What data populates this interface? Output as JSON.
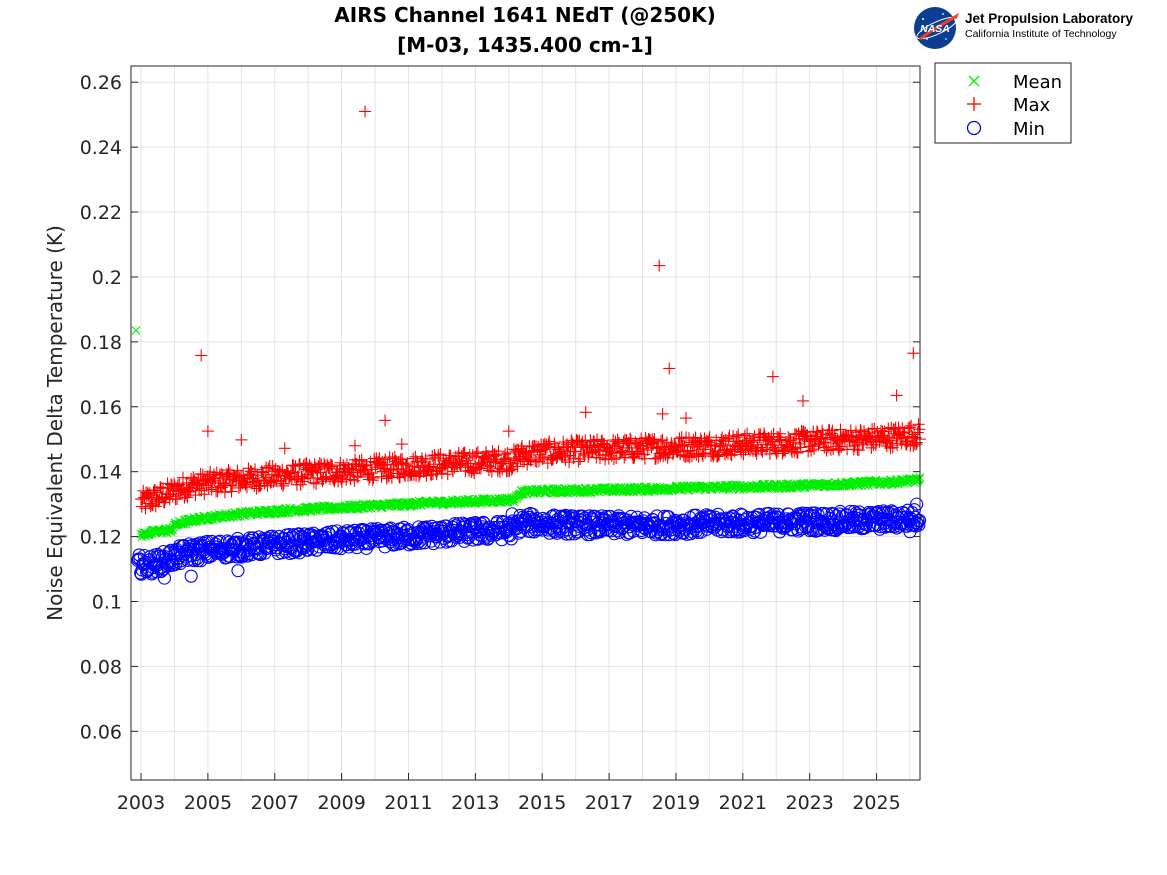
{
  "header": {
    "logo_name": "Jet Propulsion Laboratory",
    "logo_subtitle": "California Institute of Technology",
    "logo_mark_text": "NASA"
  },
  "colors": {
    "mean": "#00ee00",
    "max": "#ff0000",
    "min": "#0000ff",
    "grid": "#e3e3e3",
    "axis": "#262626"
  },
  "chart_data": {
    "type": "scatter",
    "title": [
      "AIRS Channel 1641 NEdT (@250K)",
      "[M-03, 1435.400 cm-1]"
    ],
    "ylabel": "Noise Equivalent Delta Temperature (K)",
    "xlabel": "",
    "xlim": [
      2002.7,
      2026.3
    ],
    "ylim": [
      0.045,
      0.265
    ],
    "yticks": [
      0.06,
      0.08,
      0.1,
      0.12,
      0.14,
      0.16,
      0.18,
      0.2,
      0.22,
      0.24,
      0.26
    ],
    "ytick_labels": [
      "0.06",
      "0.08",
      "0.1",
      "0.12",
      "0.14",
      "0.16",
      "0.18",
      "0.2",
      "0.22",
      "0.24",
      "0.26"
    ],
    "xticks": [
      2003,
      2005,
      2007,
      2009,
      2011,
      2013,
      2015,
      2017,
      2019,
      2021,
      2023,
      2025
    ],
    "xtick_labels": [
      "2003",
      "2005",
      "2007",
      "2009",
      "2011",
      "2013",
      "2015",
      "2017",
      "2019",
      "2021",
      "2023",
      "2025"
    ],
    "xgrid_minor": [
      2002.7,
      2003,
      2004,
      2005,
      2006,
      2007,
      2008,
      2009,
      2010,
      2011,
      2012,
      2013,
      2014,
      2015,
      2016,
      2017,
      2018,
      2019,
      2020,
      2021,
      2022,
      2023,
      2024,
      2025,
      2026
    ],
    "grid": true,
    "legend_position": "outside-top-right",
    "series": [
      {
        "name": "Mean",
        "marker": "x",
        "color": "#00ee00",
        "x": [
          2003.0,
          2003.3,
          2003.6,
          2003.9,
          2004.0,
          2004.3,
          2004.6,
          2005.0,
          2005.5,
          2006.0,
          2006.5,
          2007.0,
          2007.5,
          2008.0,
          2008.5,
          2009.0,
          2009.5,
          2010.0,
          2010.5,
          2011.0,
          2011.5,
          2012.0,
          2012.5,
          2013.0,
          2013.5,
          2014.0,
          2014.2,
          2014.3,
          2014.6,
          2015.0,
          2015.5,
          2016.0,
          2016.5,
          2017.0,
          2017.5,
          2018.0,
          2018.5,
          2019.0,
          2019.5,
          2020.0,
          2020.5,
          2021.0,
          2021.5,
          2022.0,
          2022.5,
          2023.0,
          2023.5,
          2024.0,
          2024.5,
          2025.0,
          2025.5,
          2026.0,
          2026.3
        ],
        "y": [
          0.1205,
          0.1212,
          0.1217,
          0.122,
          0.1235,
          0.1245,
          0.1252,
          0.1258,
          0.1264,
          0.127,
          0.1274,
          0.1278,
          0.1281,
          0.1284,
          0.1287,
          0.129,
          0.1292,
          0.1295,
          0.1297,
          0.13,
          0.1303,
          0.1305,
          0.1307,
          0.1309,
          0.1311,
          0.1313,
          0.1315,
          0.1335,
          0.1338,
          0.134,
          0.1341,
          0.1342,
          0.1343,
          0.1344,
          0.1345,
          0.1346,
          0.1347,
          0.1349,
          0.135,
          0.1351,
          0.1352,
          0.1353,
          0.1354,
          0.1355,
          0.1356,
          0.1358,
          0.136,
          0.1362,
          0.1364,
          0.1366,
          0.1368,
          0.1372,
          0.1375
        ],
        "outliers": [
          [
            2002.85,
            0.1835
          ]
        ]
      },
      {
        "name": "Max",
        "marker": "+",
        "color": "#ff0000",
        "x": [
          2003.0,
          2003.3,
          2003.6,
          2003.9,
          2004.2,
          2004.6,
          2005.0,
          2005.5,
          2006.0,
          2006.5,
          2007.0,
          2007.5,
          2008.0,
          2008.5,
          2009.0,
          2009.5,
          2010.0,
          2010.5,
          2011.0,
          2011.5,
          2012.0,
          2012.5,
          2013.0,
          2013.5,
          2014.0,
          2014.2,
          2014.3,
          2014.6,
          2015.0,
          2015.5,
          2016.0,
          2016.5,
          2017.0,
          2017.5,
          2018.0,
          2018.5,
          2019.0,
          2019.5,
          2020.0,
          2020.5,
          2021.0,
          2021.5,
          2022.0,
          2022.5,
          2023.0,
          2023.5,
          2024.0,
          2024.5,
          2025.0,
          2025.5,
          2026.0,
          2026.3
        ],
        "y": [
          0.1305,
          0.1315,
          0.1325,
          0.1335,
          0.135,
          0.136,
          0.1365,
          0.137,
          0.1376,
          0.1382,
          0.1386,
          0.139,
          0.1393,
          0.1397,
          0.14,
          0.1404,
          0.1408,
          0.1412,
          0.1416,
          0.142,
          0.1423,
          0.1426,
          0.1429,
          0.1432,
          0.1435,
          0.1437,
          0.145,
          0.1455,
          0.1458,
          0.1461,
          0.1464,
          0.1466,
          0.1468,
          0.147,
          0.1472,
          0.1474,
          0.1476,
          0.1478,
          0.148,
          0.1482,
          0.1484,
          0.1486,
          0.1488,
          0.149,
          0.1493,
          0.1496,
          0.1498,
          0.15,
          0.1503,
          0.1507,
          0.1512,
          0.1515
        ],
        "outliers": [
          [
            2004.8,
            0.1758
          ],
          [
            2005.0,
            0.1525
          ],
          [
            2006.0,
            0.1498
          ],
          [
            2007.3,
            0.1472
          ],
          [
            2009.4,
            0.148
          ],
          [
            2009.7,
            0.251
          ],
          [
            2010.3,
            0.1558
          ],
          [
            2010.8,
            0.1485
          ],
          [
            2014.0,
            0.1525
          ],
          [
            2016.3,
            0.1583
          ],
          [
            2018.5,
            0.2035
          ],
          [
            2018.6,
            0.1578
          ],
          [
            2018.8,
            0.1718
          ],
          [
            2019.3,
            0.1565
          ],
          [
            2021.9,
            0.1693
          ],
          [
            2022.8,
            0.1618
          ],
          [
            2025.6,
            0.1635
          ],
          [
            2026.1,
            0.1765
          ]
        ]
      },
      {
        "name": "Min",
        "marker": "o",
        "color": "#0000ff",
        "x": [
          2002.9,
          2003.2,
          2003.5,
          2003.8,
          2004.1,
          2004.4,
          2004.8,
          2005.2,
          2005.6,
          2006.0,
          2006.5,
          2007.0,
          2007.5,
          2008.0,
          2008.5,
          2009.0,
          2009.5,
          2010.0,
          2010.5,
          2011.0,
          2011.5,
          2012.0,
          2012.5,
          2013.0,
          2013.5,
          2014.0,
          2014.2,
          2014.3,
          2014.6,
          2015.0,
          2015.5,
          2016.0,
          2016.5,
          2017.0,
          2017.5,
          2018.0,
          2018.5,
          2019.0,
          2019.5,
          2020.0,
          2020.5,
          2021.0,
          2021.5,
          2022.0,
          2022.5,
          2023.0,
          2023.5,
          2024.0,
          2024.5,
          2025.0,
          2025.5,
          2026.0,
          2026.3
        ],
        "y": [
          0.1115,
          0.1112,
          0.1118,
          0.113,
          0.114,
          0.115,
          0.1155,
          0.116,
          0.1163,
          0.1166,
          0.117,
          0.1174,
          0.1178,
          0.1181,
          0.1185,
          0.1189,
          0.1192,
          0.1195,
          0.1198,
          0.1201,
          0.1205,
          0.1208,
          0.1212,
          0.1215,
          0.1218,
          0.122,
          0.1222,
          0.124,
          0.1242,
          0.124,
          0.1238,
          0.1236,
          0.1235,
          0.1234,
          0.1234,
          0.1234,
          0.1235,
          0.1236,
          0.1237,
          0.1238,
          0.124,
          0.1241,
          0.1242,
          0.1243,
          0.1245,
          0.1246,
          0.1247,
          0.1248,
          0.1249,
          0.125,
          0.1252,
          0.1255,
          0.1257
        ],
        "outliers": [
          [
            2004.5,
            0.1078
          ],
          [
            2003.7,
            0.1072
          ],
          [
            2005.9,
            0.1095
          ],
          [
            2014.1,
            0.127
          ],
          [
            2026.2,
            0.13
          ],
          [
            2026.0,
            0.1215
          ]
        ]
      }
    ]
  }
}
